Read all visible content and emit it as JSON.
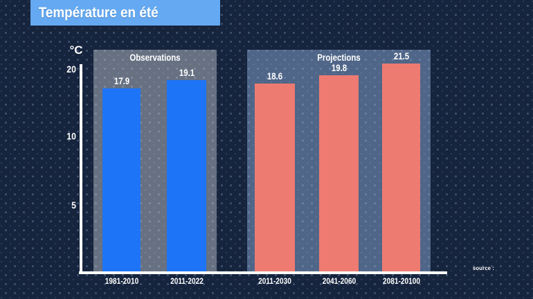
{
  "banner": {
    "title": "Température en été",
    "background": "#64a9f1"
  },
  "source_label": "source :",
  "colors": {
    "background": "#16243d",
    "observations_bar": "#1e74f6",
    "projections_bar": "#ee7b71",
    "text": "#ffffff"
  },
  "chart_data": {
    "type": "bar",
    "title": "Température en été",
    "ylabel": "°C",
    "yticks": [
      "20",
      "10",
      "5"
    ],
    "grid": false,
    "value_labels_shown": true,
    "legend_position": "group-panel-headers",
    "categories": [
      "1981-2010",
      "2011-2022",
      "2011-2030",
      "2041-2060",
      "2081-20100"
    ],
    "series": [
      {
        "name": "Observations",
        "color": "#1e74f6",
        "points": [
          {
            "category": "1981-2010",
            "value": 17.9
          },
          {
            "category": "2011-2022",
            "value": 19.1
          }
        ]
      },
      {
        "name": "Projections",
        "color": "#ee7b71",
        "points": [
          {
            "category": "2011-2030",
            "value": 18.6
          },
          {
            "category": "2041-2060",
            "value": 19.8
          },
          {
            "category": "2081-20100",
            "value": 21.5
          }
        ]
      }
    ]
  }
}
